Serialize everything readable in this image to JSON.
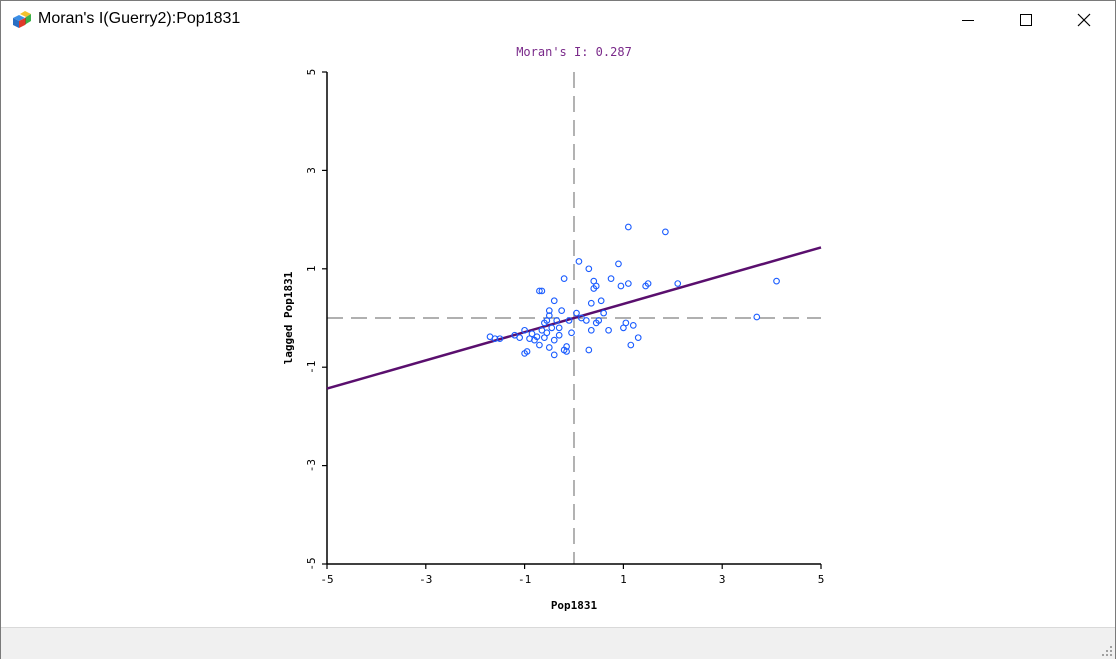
{
  "window": {
    "title": "Moran's I(Guerry2):Pop1831",
    "app_icon": "cubes-icon",
    "controls": [
      "minimize-icon",
      "maximize-icon",
      "close-icon"
    ]
  },
  "colors": {
    "point": "#1a5cff",
    "regression": "#5a0f6e",
    "title_text": "#7a2a8a",
    "axis": "#000000",
    "dashed": "#808080"
  },
  "chart_data": {
    "type": "scatter",
    "title": "Moran's I: 0.287",
    "xlabel": "Pop1831",
    "ylabel": "lagged Pop1831",
    "xlim": [
      -5,
      5
    ],
    "ylim": [
      -5,
      5
    ],
    "xticks": [
      "-5",
      "-3",
      "-1",
      "1",
      "3",
      "5"
    ],
    "yticks": [
      "-5",
      "-3",
      "-1",
      "1",
      "3",
      "5"
    ],
    "slope": 0.287,
    "intercept": 0,
    "reference_lines": {
      "x": 0,
      "y": 0
    },
    "points": [
      [
        -1.7,
        -0.38
      ],
      [
        -1.6,
        -0.42
      ],
      [
        -1.5,
        -0.42
      ],
      [
        -1.2,
        -0.35
      ],
      [
        -1.1,
        -0.4
      ],
      [
        -1.0,
        -0.72
      ],
      [
        -1.0,
        -0.25
      ],
      [
        -0.95,
        -0.68
      ],
      [
        -0.9,
        -0.42
      ],
      [
        -0.85,
        -0.32
      ],
      [
        -0.8,
        -0.45
      ],
      [
        -0.75,
        -0.38
      ],
      [
        -0.7,
        -0.55
      ],
      [
        -0.7,
        0.55
      ],
      [
        -0.65,
        0.55
      ],
      [
        -0.65,
        -0.25
      ],
      [
        -0.6,
        -0.4
      ],
      [
        -0.6,
        -0.1
      ],
      [
        -0.55,
        -0.05
      ],
      [
        -0.55,
        -0.3
      ],
      [
        -0.5,
        0.05
      ],
      [
        -0.5,
        -0.6
      ],
      [
        -0.5,
        0.15
      ],
      [
        -0.45,
        -0.2
      ],
      [
        -0.4,
        -0.45
      ],
      [
        -0.4,
        -0.75
      ],
      [
        -0.4,
        0.35
      ],
      [
        -0.35,
        -0.05
      ],
      [
        -0.3,
        -0.35
      ],
      [
        -0.3,
        -0.2
      ],
      [
        -0.25,
        0.15
      ],
      [
        -0.2,
        -0.65
      ],
      [
        -0.2,
        0.8
      ],
      [
        -0.15,
        -0.58
      ],
      [
        -0.15,
        -0.68
      ],
      [
        -0.1,
        -0.05
      ],
      [
        -0.05,
        -0.3
      ],
      [
        0.05,
        0.1
      ],
      [
        0.1,
        1.15
      ],
      [
        0.15,
        0.0
      ],
      [
        0.25,
        -0.05
      ],
      [
        0.3,
        1.0
      ],
      [
        0.3,
        -0.65
      ],
      [
        0.35,
        -0.25
      ],
      [
        0.35,
        0.3
      ],
      [
        0.4,
        0.75
      ],
      [
        0.4,
        0.6
      ],
      [
        0.45,
        0.65
      ],
      [
        0.45,
        -0.1
      ],
      [
        0.5,
        -0.05
      ],
      [
        0.55,
        0.35
      ],
      [
        0.6,
        0.1
      ],
      [
        0.7,
        -0.25
      ],
      [
        0.75,
        0.8
      ],
      [
        0.9,
        1.1
      ],
      [
        0.95,
        0.65
      ],
      [
        1.0,
        -0.2
      ],
      [
        1.05,
        -0.1
      ],
      [
        1.1,
        1.85
      ],
      [
        1.1,
        0.7
      ],
      [
        1.15,
        -0.55
      ],
      [
        1.2,
        -0.15
      ],
      [
        1.3,
        -0.4
      ],
      [
        1.45,
        0.65
      ],
      [
        1.5,
        0.7
      ],
      [
        1.85,
        1.75
      ],
      [
        2.1,
        0.7
      ],
      [
        3.7,
        0.02
      ],
      [
        4.1,
        0.75
      ]
    ]
  }
}
